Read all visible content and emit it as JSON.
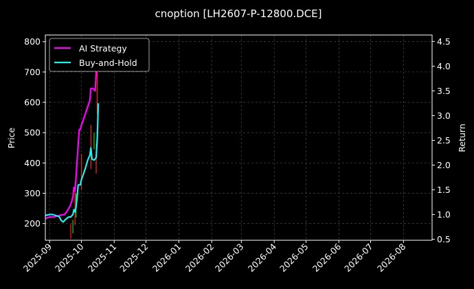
{
  "chart_data": {
    "type": "line",
    "title": "cnoption [LH2607-P-12800.DCE]",
    "ylabel": "Price",
    "y2label": "Return",
    "x_ticks": [
      "2025-09",
      "2025-10",
      "2025-11",
      "2025-12",
      "2026-01",
      "2026-02",
      "2026-03",
      "2026-04",
      "2026-05",
      "2026-06",
      "2026-07",
      "2026-08"
    ],
    "xlim": [
      "2025-08-28",
      "2026-08-28"
    ],
    "ylim": [
      145,
      822
    ],
    "y_ticks": [
      200,
      300,
      400,
      500,
      600,
      700,
      800
    ],
    "y2lim": [
      0.48,
      4.63
    ],
    "y2_ticks": [
      0.5,
      1.0,
      1.5,
      2.0,
      2.5,
      3.0,
      3.5,
      4.0,
      4.5
    ],
    "grid": true,
    "legend": "top-left",
    "series": [
      {
        "name": "AI Strategy",
        "color": "#ff00ff",
        "axis": "right",
        "x": [
          "2025-08-28",
          "2025-09-01",
          "2025-09-05",
          "2025-09-09",
          "2025-09-12",
          "2025-09-15",
          "2025-09-17",
          "2025-09-19",
          "2025-09-21",
          "2025-09-23",
          "2025-09-24",
          "2025-09-25",
          "2025-09-26",
          "2025-09-27",
          "2025-09-28",
          "2025-09-29",
          "2025-09-30",
          "2025-10-01",
          "2025-10-03",
          "2025-10-05",
          "2025-10-07",
          "2025-10-09",
          "2025-10-10",
          "2025-10-12",
          "2025-10-14",
          "2025-10-15",
          "2025-10-16",
          "2025-10-17"
        ],
        "values": [
          0.92,
          0.95,
          0.95,
          0.97,
          0.99,
          1.0,
          1.05,
          1.12,
          1.2,
          1.35,
          1.55,
          1.48,
          1.75,
          2.1,
          2.4,
          2.72,
          2.72,
          2.8,
          2.92,
          3.05,
          3.18,
          3.3,
          3.55,
          3.55,
          3.5,
          3.85,
          4.25,
          4.55
        ]
      },
      {
        "name": "Buy-and-Hold",
        "color": "#22eeee",
        "axis": "right",
        "x": [
          "2025-08-28",
          "2025-09-01",
          "2025-09-04",
          "2025-09-07",
          "2025-09-10",
          "2025-09-12",
          "2025-09-14",
          "2025-09-16",
          "2025-09-19",
          "2025-09-21",
          "2025-09-23",
          "2025-09-24",
          "2025-09-25",
          "2025-09-26",
          "2025-09-27",
          "2025-09-28",
          "2025-09-30",
          "2025-10-01",
          "2025-10-03",
          "2025-10-05",
          "2025-10-07",
          "2025-10-09",
          "2025-10-10",
          "2025-10-11",
          "2025-10-13",
          "2025-10-15",
          "2025-10-16",
          "2025-10-17"
        ],
        "values": [
          0.98,
          1.0,
          1.0,
          0.98,
          0.96,
          0.88,
          0.85,
          0.9,
          0.95,
          0.95,
          1.0,
          1.1,
          1.05,
          1.15,
          1.35,
          1.6,
          1.6,
          1.7,
          1.82,
          1.95,
          2.1,
          2.2,
          2.35,
          2.12,
          2.1,
          2.15,
          2.55,
          3.25
        ]
      }
    ],
    "candles": [
      {
        "x": "2025-09-21",
        "low": 150,
        "high": 198,
        "color": "#ff2222"
      },
      {
        "x": "2025-09-23",
        "low": 168,
        "high": 212,
        "color": "#22cc22"
      },
      {
        "x": "2025-09-25",
        "low": 195,
        "high": 320,
        "color": "#ff2222"
      },
      {
        "x": "2025-09-26",
        "low": 220,
        "high": 300,
        "color": "#22cc22"
      },
      {
        "x": "2025-10-01",
        "low": 310,
        "high": 430,
        "color": "#ff2222"
      },
      {
        "x": "2025-10-10",
        "low": 380,
        "high": 525,
        "color": "#ff2222"
      },
      {
        "x": "2025-10-13",
        "low": 445,
        "high": 500,
        "color": "#22cc22"
      },
      {
        "x": "2025-10-15",
        "low": 365,
        "high": 465,
        "color": "#ff2222"
      },
      {
        "x": "2025-10-16",
        "low": 560,
        "high": 700,
        "color": "#ff2222"
      }
    ]
  }
}
